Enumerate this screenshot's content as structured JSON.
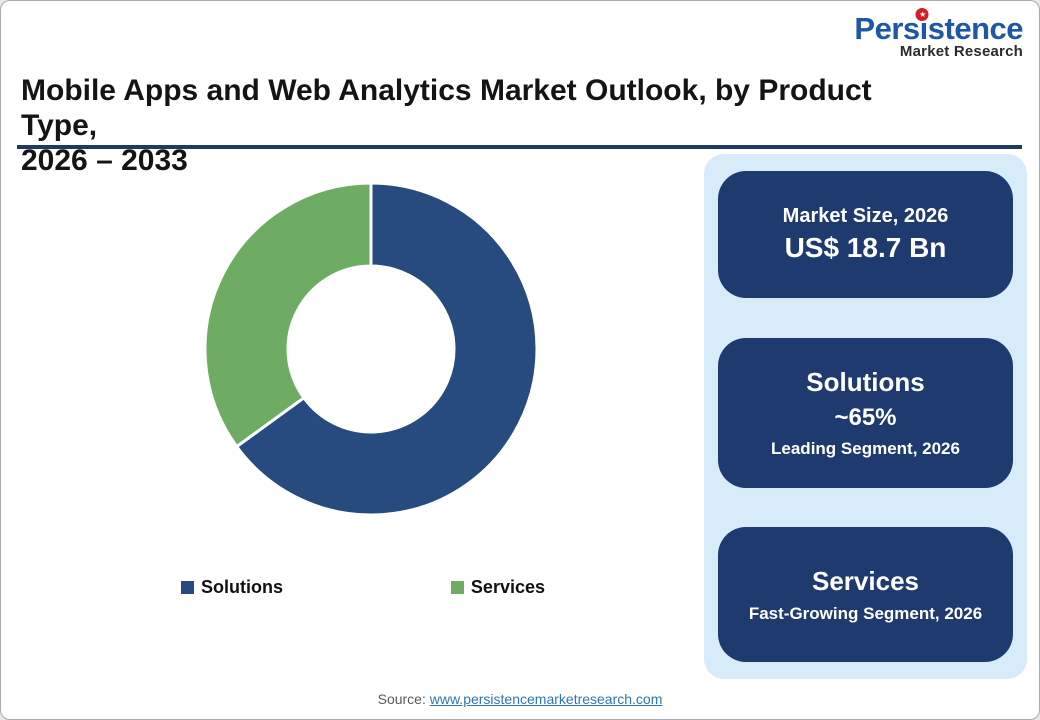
{
  "brand": {
    "name_parts": [
      "Pers",
      "i",
      "stence"
    ],
    "name": "Persistence",
    "subtitle": "Market Research",
    "star_icon": "★"
  },
  "header": {
    "title_line1": "Mobile Apps and Web Analytics Market Outlook, by Product Type,",
    "title_line2": "2026 – 2033"
  },
  "chart_data": {
    "type": "pie",
    "donut": true,
    "title": "Mobile Apps and Web Analytics Market Outlook, by Product Type, 2026 – 2033",
    "categories": [
      "Solutions",
      "Services"
    ],
    "values": [
      65,
      35
    ],
    "units": "percent",
    "colors": [
      "#274B7E",
      "#6DAC62"
    ],
    "start_angle_deg": 0,
    "direction": "clockwise",
    "inner_radius_ratio": 0.5,
    "legend_position": "bottom",
    "annotations": {
      "market_size_2026": "US$ 18.7 Bn",
      "leading_segment": "Solutions ~65%",
      "fast_growing_segment": "Services"
    }
  },
  "cards": [
    {
      "line1": "Market Size, 2026",
      "line2": "US$ 18.7 Bn"
    },
    {
      "title": "Solutions",
      "value": "~65%",
      "caption": "Leading Segment, 2026"
    },
    {
      "title": "Services",
      "caption": "Fast-Growing Segment, 2026"
    }
  ],
  "source": {
    "label": "Source:",
    "link": "www.persistencemarketresearch.com"
  },
  "theme": {
    "rule": "#1F3864",
    "panel_bg": "#D8EBF8",
    "card_bg": "#1F3A6E",
    "card_text": "#FFFFFF",
    "logo_blue": "#1E57A5",
    "logo_red": "#D01F26",
    "link_blue": "#2E75B6",
    "src_gray": "#595959"
  }
}
